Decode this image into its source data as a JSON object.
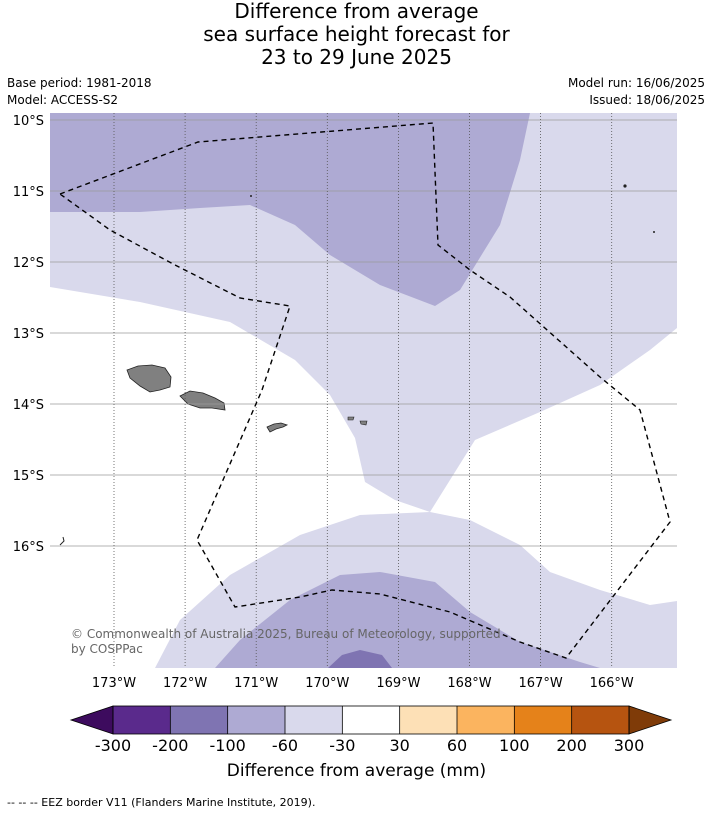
{
  "title": {
    "line1": "Difference from average",
    "line2": "sea surface height forecast for",
    "line3": "23 to 29 June 2025"
  },
  "meta": {
    "base_period": "Base period: 1981-2018",
    "model": "Model: ACCESS-S2",
    "model_run": "Model run: 16/06/2025",
    "issued": "Issued: 18/06/2025"
  },
  "map": {
    "lat_labels": [
      "10°S",
      "11°S",
      "12°S",
      "13°S",
      "14°S",
      "15°S",
      "16°S"
    ],
    "lon_labels": [
      "173°W",
      "172°W",
      "171°W",
      "170°W",
      "169°W",
      "168°W",
      "167°W",
      "166°W"
    ],
    "copyright_line1": "© Commonwealth of Australia 2025, Bureau of Meteorology, supported",
    "copyright_line2": "by COSPPac",
    "colors": {
      "neg100_60": "#aeaad3",
      "neg60_30": "#d9d9ec",
      "neg30_30": "#ffffff",
      "neg200_100": "#7f74b2",
      "land": "#808080"
    }
  },
  "colorbar": {
    "tick_labels": [
      "-300",
      "-200",
      "-100",
      "-60",
      "-30",
      "30",
      "60",
      "100",
      "200",
      "300"
    ],
    "colors": [
      "#5a2a8c",
      "#7f74b2",
      "#aeaad3",
      "#d9d9ec",
      "#ffffff",
      "#fde0b6",
      "#fbb45f",
      "#e5821a",
      "#b65410"
    ],
    "under_color": "#3d0b5e",
    "over_color": "#7f3b08",
    "label": "Difference from average (mm)"
  },
  "footnote": "--  --  -- EEZ border V11 (Flanders Marine Institute, 2019)."
}
